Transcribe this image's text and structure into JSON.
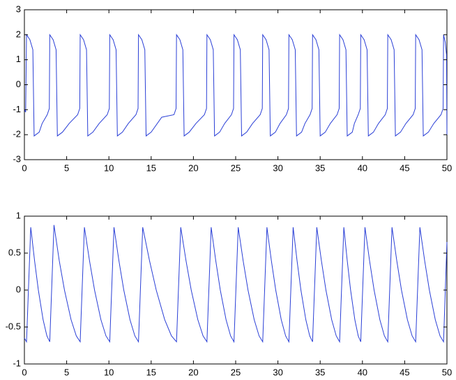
{
  "chart_data": [
    {
      "type": "line",
      "color": "#2a3fd6",
      "xlim": [
        0,
        50
      ],
      "xticks": [
        0,
        5,
        10,
        15,
        20,
        25,
        30,
        35,
        40,
        45,
        50
      ],
      "ylim": [
        -3,
        3
      ],
      "yticks": [
        -3,
        -2,
        -1,
        0,
        1,
        2,
        3
      ],
      "x": [
        0,
        0.15,
        0.25,
        0.65,
        1.0,
        1.15,
        1.75,
        2.1,
        2.7,
        2.95,
        3.0,
        3.4,
        3.75,
        3.9,
        4.5,
        5.3,
        6.3,
        6.55,
        6.6,
        7.0,
        7.35,
        7.5,
        8.1,
        8.85,
        9.8,
        10.05,
        10.1,
        10.5,
        10.85,
        11.0,
        11.6,
        12.3,
        13.2,
        13.45,
        13.5,
        13.9,
        14.25,
        14.4,
        15.0,
        16.25,
        17.7,
        17.95,
        18.0,
        18.4,
        18.75,
        18.9,
        19.5,
        20.3,
        21.3,
        21.55,
        21.6,
        22.0,
        22.35,
        22.5,
        23.1,
        23.7,
        24.5,
        24.75,
        24.8,
        25.2,
        25.55,
        25.7,
        26.3,
        27.0,
        27.9,
        28.15,
        28.2,
        28.6,
        28.95,
        29.1,
        29.7,
        30.25,
        31.0,
        31.25,
        31.3,
        31.7,
        32.05,
        32.2,
        32.8,
        33.2,
        33.8,
        34.05,
        34.1,
        34.5,
        34.85,
        35.0,
        35.6,
        36.2,
        37.0,
        37.25,
        37.3,
        37.7,
        38.05,
        38.2,
        38.8,
        39.05,
        39.5,
        39.75,
        39.8,
        40.2,
        40.55,
        40.7,
        41.3,
        41.9,
        42.7,
        42.95,
        43.0,
        43.4,
        43.75,
        43.9,
        44.5,
        45.15,
        46.0,
        46.25,
        46.3,
        46.7,
        47.05,
        47.2,
        47.8,
        48.45,
        49.3,
        49.55,
        49.6,
        49.8,
        49.95,
        50
      ],
      "values": [
        -1.0,
        -1.1,
        2,
        1.8,
        1.4,
        -2.05,
        -1.9,
        -1.55,
        -1.2,
        -0.95,
        2,
        1.8,
        1.4,
        -2.05,
        -1.9,
        -1.55,
        -1.2,
        -0.95,
        2,
        1.8,
        1.4,
        -2.05,
        -1.9,
        -1.55,
        -1.2,
        -0.95,
        2,
        1.8,
        1.4,
        -2.05,
        -1.9,
        -1.55,
        -1.2,
        -0.95,
        2,
        1.8,
        1.4,
        -2.05,
        -1.9,
        -1.3,
        -1.2,
        -0.95,
        2,
        1.8,
        1.4,
        -2.05,
        -1.9,
        -1.55,
        -1.2,
        -0.95,
        2,
        1.8,
        1.4,
        -2.05,
        -1.9,
        -1.55,
        -1.2,
        -0.95,
        2,
        1.8,
        1.4,
        -2.05,
        -1.9,
        -1.55,
        -1.2,
        -0.95,
        2,
        1.8,
        1.4,
        -2.05,
        -1.9,
        -1.55,
        -1.2,
        -0.95,
        2,
        1.8,
        1.4,
        -2.05,
        -1.9,
        -1.55,
        -1.2,
        -0.95,
        2,
        1.8,
        1.4,
        -2.05,
        -1.9,
        -1.55,
        -1.2,
        -0.95,
        2,
        1.8,
        1.4,
        -2.05,
        -1.9,
        -1.55,
        -1.2,
        -0.95,
        2,
        1.8,
        1.4,
        -2.05,
        -1.9,
        -1.55,
        -1.2,
        -0.95,
        2,
        1.8,
        1.4,
        -2.05,
        -1.9,
        -1.55,
        -1.2,
        -0.95,
        2,
        1.8,
        1.4,
        -2.05,
        -1.9,
        -1.55,
        -1.2,
        -0.95,
        2,
        1.7,
        1.2,
        -2.0
      ]
    },
    {
      "type": "line",
      "color": "#2a3fd6",
      "xlim": [
        0,
        50
      ],
      "xticks": [
        0,
        5,
        10,
        15,
        20,
        25,
        30,
        35,
        40,
        45,
        50
      ],
      "ylim": [
        -1,
        1
      ],
      "yticks": [
        -1,
        -0.5,
        0,
        0.5,
        1
      ],
      "x": [
        0,
        0.25,
        0.75,
        1.2,
        1.65,
        2.21,
        2.66,
        3.0,
        3.5,
        4.12,
        4.74,
        5.52,
        6.14,
        6.6,
        7.1,
        7.7,
        8.3,
        9.05,
        9.65,
        10.1,
        10.6,
        11.18,
        11.76,
        12.49,
        13.07,
        13.5,
        14.0,
        14.8,
        15.6,
        16.6,
        17.4,
        18.0,
        18.5,
        19.12,
        19.74,
        20.52,
        21.14,
        21.6,
        22.1,
        22.64,
        23.18,
        23.86,
        24.4,
        24.8,
        25.3,
        25.88,
        26.46,
        27.19,
        27.77,
        28.2,
        28.7,
        29.22,
        29.74,
        30.39,
        30.91,
        31.3,
        31.8,
        32.26,
        32.72,
        33.3,
        33.76,
        34.1,
        34.6,
        35.14,
        35.68,
        36.36,
        36.9,
        37.3,
        37.8,
        38.2,
        38.6,
        39.1,
        39.5,
        39.8,
        40.3,
        40.84,
        41.38,
        42.06,
        42.6,
        43.0,
        43.5,
        44.06,
        44.62,
        45.32,
        45.88,
        46.3,
        46.8,
        47.36,
        47.92,
        48.62,
        49.18,
        49.6,
        50
      ],
      "values": [
        -0.65,
        -0.7,
        0.85,
        0.4,
        0.0,
        -0.4,
        -0.62,
        -0.7,
        0.88,
        0.4,
        0.0,
        -0.4,
        -0.62,
        -0.7,
        0.85,
        0.4,
        0.0,
        -0.4,
        -0.62,
        -0.7,
        0.85,
        0.4,
        0.0,
        -0.4,
        -0.62,
        -0.7,
        0.85,
        0.4,
        0.0,
        -0.4,
        -0.62,
        -0.7,
        0.85,
        0.4,
        0.0,
        -0.4,
        -0.62,
        -0.7,
        0.85,
        0.4,
        0.0,
        -0.4,
        -0.62,
        -0.7,
        0.85,
        0.4,
        0.0,
        -0.4,
        -0.62,
        -0.7,
        0.85,
        0.4,
        0.0,
        -0.4,
        -0.62,
        -0.7,
        0.85,
        0.4,
        0.0,
        -0.4,
        -0.62,
        -0.7,
        0.85,
        0.4,
        0.0,
        -0.4,
        -0.62,
        -0.7,
        0.85,
        0.4,
        0.0,
        -0.4,
        -0.62,
        -0.7,
        0.85,
        0.4,
        0.0,
        -0.4,
        -0.62,
        -0.7,
        0.85,
        0.4,
        0.0,
        -0.4,
        -0.62,
        -0.7,
        0.85,
        0.4,
        0.0,
        -0.4,
        -0.62,
        -0.7,
        0.65
      ]
    }
  ]
}
